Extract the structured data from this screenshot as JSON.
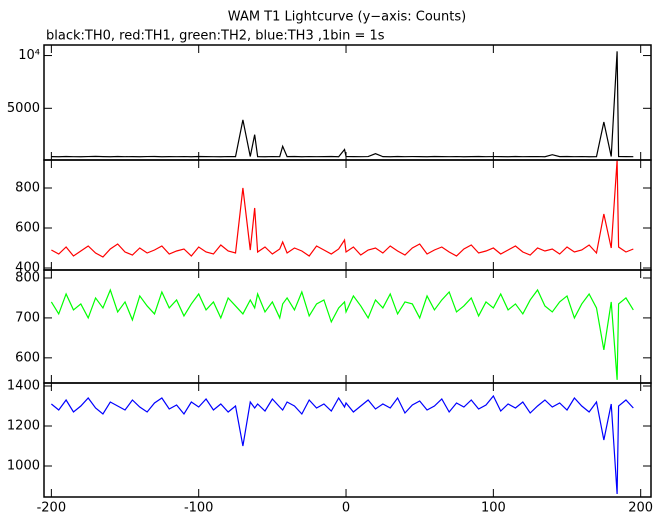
{
  "chart_data": [
    {
      "type": "line",
      "title": "WAM T1 Lightcurve (y−axis: Counts)",
      "subtitle": "black:TH0, red:TH1, green:TH2, blue:TH3 ,1bin = 1s",
      "x": [
        -200,
        -195,
        -190,
        -185,
        -180,
        -175,
        -170,
        -165,
        -160,
        -155,
        -150,
        -145,
        -140,
        -135,
        -130,
        -125,
        -120,
        -115,
        -110,
        -105,
        -100,
        -95,
        -90,
        -85,
        -80,
        -75,
        -70,
        -65,
        -62,
        -60,
        -55,
        -50,
        -45,
        -43,
        -40,
        -35,
        -30,
        -25,
        -20,
        -15,
        -10,
        -5,
        -1,
        0,
        5,
        10,
        15,
        20,
        25,
        30,
        35,
        40,
        45,
        50,
        55,
        60,
        65,
        70,
        75,
        80,
        85,
        90,
        95,
        100,
        105,
        110,
        115,
        120,
        125,
        130,
        135,
        140,
        145,
        150,
        155,
        160,
        165,
        170,
        175,
        180,
        184,
        185,
        190,
        195
      ],
      "xlim": [
        -205,
        207
      ],
      "ylim": [
        100,
        11000
      ],
      "yticks": [
        5000,
        {
          "value": 10000,
          "label": "10⁴"
        }
      ],
      "series": [
        {
          "color": "#000000",
          "values": [
            420,
            410,
            430,
            415,
            405,
            425,
            440,
            420,
            410,
            430,
            415,
            420,
            405,
            425,
            430,
            410,
            420,
            415,
            425,
            410,
            430,
            420,
            415,
            405,
            425,
            420,
            3900,
            430,
            2500,
            420,
            410,
            425,
            415,
            1400,
            420,
            430,
            410,
            425,
            415,
            420,
            430,
            410,
            1100,
            430,
            420,
            415,
            425,
            700,
            420,
            410,
            430,
            415,
            425,
            420,
            410,
            430,
            420,
            415,
            425,
            410,
            420,
            430,
            415,
            425,
            420,
            410,
            430,
            415,
            420,
            425,
            410,
            600,
            420,
            430,
            415,
            425,
            410,
            420,
            3700,
            430,
            10400,
            430,
            420,
            415
          ]
        }
      ]
    },
    {
      "type": "line",
      "x": [
        -200,
        -195,
        -190,
        -185,
        -180,
        -175,
        -170,
        -165,
        -160,
        -155,
        -150,
        -145,
        -140,
        -135,
        -130,
        -125,
        -120,
        -115,
        -110,
        -105,
        -100,
        -95,
        -90,
        -85,
        -80,
        -75,
        -70,
        -65,
        -62,
        -60,
        -55,
        -50,
        -45,
        -43,
        -40,
        -35,
        -30,
        -25,
        -20,
        -15,
        -10,
        -5,
        -1,
        0,
        5,
        10,
        15,
        20,
        25,
        30,
        35,
        40,
        45,
        50,
        55,
        60,
        65,
        70,
        75,
        80,
        85,
        90,
        95,
        100,
        105,
        110,
        115,
        120,
        125,
        130,
        135,
        140,
        145,
        150,
        155,
        160,
        165,
        170,
        175,
        180,
        184,
        185,
        190,
        195
      ],
      "xlim": [
        -205,
        207
      ],
      "ylim": [
        390,
        940
      ],
      "yticks": [
        400,
        600,
        800
      ],
      "series": [
        {
          "color": "#ff0000",
          "values": [
            490,
            470,
            505,
            460,
            485,
            510,
            475,
            455,
            495,
            520,
            480,
            465,
            500,
            475,
            490,
            510,
            470,
            485,
            495,
            460,
            505,
            480,
            470,
            515,
            485,
            475,
            800,
            490,
            700,
            480,
            505,
            470,
            495,
            530,
            475,
            500,
            485,
            460,
            510,
            490,
            470,
            495,
            540,
            480,
            505,
            465,
            490,
            500,
            475,
            510,
            485,
            465,
            500,
            520,
            470,
            490,
            505,
            480,
            460,
            495,
            515,
            475,
            485,
            500,
            470,
            490,
            510,
            480,
            465,
            500,
            485,
            495,
            470,
            505,
            480,
            490,
            515,
            475,
            670,
            500,
            940,
            505,
            480,
            495
          ]
        }
      ]
    },
    {
      "type": "line",
      "x": [
        -200,
        -195,
        -190,
        -185,
        -180,
        -175,
        -170,
        -165,
        -160,
        -155,
        -150,
        -145,
        -140,
        -135,
        -130,
        -125,
        -120,
        -115,
        -110,
        -105,
        -100,
        -95,
        -90,
        -85,
        -80,
        -75,
        -70,
        -65,
        -62,
        -60,
        -55,
        -50,
        -45,
        -43,
        -40,
        -35,
        -30,
        -25,
        -20,
        -15,
        -10,
        -5,
        -1,
        0,
        5,
        10,
        15,
        20,
        25,
        30,
        35,
        40,
        45,
        50,
        55,
        60,
        65,
        70,
        75,
        80,
        85,
        90,
        95,
        100,
        105,
        110,
        115,
        120,
        125,
        130,
        135,
        140,
        145,
        150,
        155,
        160,
        165,
        170,
        175,
        180,
        184,
        185,
        190,
        195
      ],
      "xlim": [
        -205,
        207
      ],
      "ylim": [
        537,
        820
      ],
      "yticks": [
        600,
        700,
        800
      ],
      "series": [
        {
          "color": "#00ff00",
          "values": [
            740,
            710,
            760,
            720,
            735,
            700,
            750,
            725,
            770,
            715,
            740,
            695,
            755,
            730,
            710,
            765,
            725,
            745,
            705,
            735,
            760,
            720,
            740,
            700,
            750,
            730,
            710,
            745,
            725,
            760,
            715,
            740,
            700,
            735,
            750,
            720,
            765,
            705,
            735,
            745,
            690,
            725,
            740,
            715,
            755,
            730,
            700,
            745,
            725,
            760,
            710,
            740,
            735,
            700,
            755,
            720,
            745,
            765,
            715,
            730,
            750,
            705,
            740,
            725,
            760,
            720,
            735,
            710,
            745,
            770,
            730,
            715,
            740,
            755,
            700,
            735,
            760,
            725,
            620,
            740,
            545,
            735,
            750,
            720
          ]
        }
      ]
    },
    {
      "type": "line",
      "x": [
        -200,
        -195,
        -190,
        -185,
        -180,
        -175,
        -170,
        -165,
        -160,
        -155,
        -150,
        -145,
        -140,
        -135,
        -130,
        -125,
        -120,
        -115,
        -110,
        -105,
        -100,
        -95,
        -90,
        -85,
        -80,
        -75,
        -70,
        -65,
        -62,
        -60,
        -55,
        -50,
        -45,
        -43,
        -40,
        -35,
        -30,
        -25,
        -20,
        -15,
        -10,
        -5,
        -1,
        0,
        5,
        10,
        15,
        20,
        25,
        30,
        35,
        40,
        45,
        50,
        55,
        60,
        65,
        70,
        75,
        80,
        85,
        90,
        95,
        100,
        105,
        110,
        115,
        120,
        125,
        130,
        135,
        140,
        145,
        150,
        155,
        160,
        165,
        170,
        175,
        180,
        184,
        185,
        190,
        195
      ],
      "xlim": [
        -205,
        207
      ],
      "ylim": [
        845,
        1415
      ],
      "yticks": [
        1000,
        1200,
        1400
      ],
      "xticks": [
        -200,
        -100,
        0,
        100,
        200
      ],
      "series": [
        {
          "color": "#0000ff",
          "values": [
            1310,
            1280,
            1330,
            1270,
            1300,
            1340,
            1290,
            1260,
            1320,
            1300,
            1280,
            1330,
            1295,
            1270,
            1315,
            1340,
            1285,
            1305,
            1260,
            1320,
            1295,
            1335,
            1280,
            1310,
            1270,
            1300,
            1100,
            1320,
            1290,
            1310,
            1275,
            1335,
            1295,
            1280,
            1320,
            1300,
            1260,
            1330,
            1290,
            1310,
            1275,
            1340,
            1295,
            1315,
            1270,
            1300,
            1330,
            1285,
            1310,
            1290,
            1340,
            1265,
            1305,
            1325,
            1280,
            1300,
            1335,
            1270,
            1315,
            1295,
            1330,
            1285,
            1305,
            1350,
            1275,
            1310,
            1290,
            1320,
            1265,
            1300,
            1330,
            1295,
            1315,
            1280,
            1340,
            1300,
            1270,
            1320,
            1130,
            1310,
            860,
            1300,
            1330,
            1290
          ]
        }
      ]
    }
  ]
}
